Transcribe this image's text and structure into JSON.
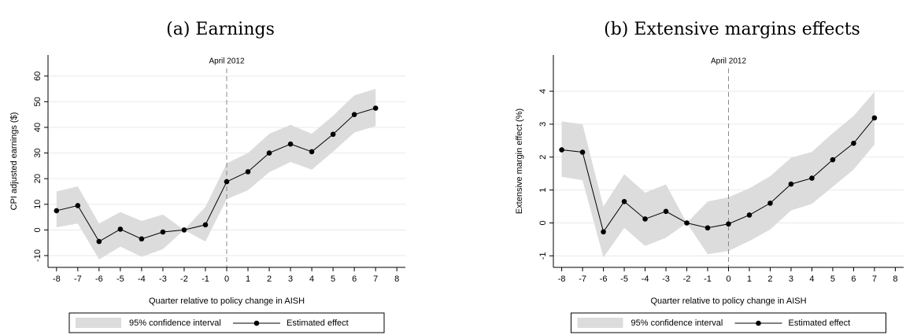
{
  "chart_data": [
    {
      "type": "line",
      "title": "(a) Earnings",
      "xlabel": "Quarter relative to policy change in AISH",
      "ylabel": "CPI adjusted earnings ($)",
      "annotation": {
        "text": "April 2012",
        "x": 0
      },
      "x": [
        -8,
        -7,
        -6,
        -5,
        -4,
        -3,
        -2,
        -1,
        0,
        1,
        2,
        3,
        4,
        5,
        6,
        7
      ],
      "series": [
        {
          "name": "95% confidence interval",
          "color": "#dcdcdc",
          "lower": [
            1,
            2.5,
            -11.5,
            -6.5,
            -10.5,
            -7.5,
            0,
            -4.5,
            12,
            15.5,
            22.5,
            26.5,
            23.5,
            30.5,
            38,
            40.5
          ],
          "upper": [
            15,
            17,
            2.5,
            7,
            3.5,
            6,
            0,
            9,
            26,
            30,
            37.5,
            41,
            37.5,
            44.5,
            52.5,
            55
          ]
        },
        {
          "name": "Estimated effect",
          "color": "#000000",
          "values": [
            7.5,
            9.5,
            -4.5,
            0.3,
            -3.5,
            -0.8,
            0,
            2,
            18.8,
            22.7,
            30,
            33.5,
            30.5,
            37.3,
            45,
            47.5
          ]
        }
      ],
      "xlim": [
        -8.4,
        8.4
      ],
      "xticks": [
        -8,
        -7,
        -6,
        -5,
        -4,
        -3,
        -2,
        -1,
        0,
        1,
        2,
        3,
        4,
        5,
        6,
        7,
        8
      ],
      "ylim": [
        -14.6,
        68.2
      ],
      "yticks": [
        -10,
        0,
        10,
        20,
        30,
        40,
        50,
        60
      ],
      "grid": true
    },
    {
      "type": "line",
      "title": "(b) Extensive margins effects",
      "xlabel": "Quarter relative to policy change in AISH",
      "ylabel": "Extensive margin effect (%)",
      "annotation": {
        "text": "April 2012",
        "x": 0
      },
      "x": [
        -8,
        -7,
        -6,
        -5,
        -4,
        -3,
        -2,
        -1,
        0,
        1,
        2,
        3,
        4,
        5,
        6,
        7
      ],
      "series": [
        {
          "name": "95% confidence interval",
          "color": "#dcdcdc",
          "lower": [
            1.4,
            1.3,
            -1.05,
            -0.15,
            -0.7,
            -0.45,
            0,
            -0.95,
            -0.85,
            -0.55,
            -0.2,
            0.38,
            0.58,
            1.1,
            1.62,
            2.38
          ],
          "upper": [
            3.08,
            3.0,
            0.5,
            1.48,
            0.92,
            1.17,
            0,
            0.65,
            0.78,
            1.05,
            1.42,
            1.98,
            2.16,
            2.73,
            3.25,
            3.98
          ]
        },
        {
          "name": "Estimated effect",
          "color": "#000000",
          "values": [
            2.22,
            2.15,
            -0.27,
            0.65,
            0.12,
            0.35,
            0,
            -0.15,
            -0.03,
            0.24,
            0.6,
            1.18,
            1.36,
            1.92,
            2.42,
            3.19
          ]
        }
      ],
      "xlim": [
        -8.4,
        8.4
      ],
      "xticks": [
        -8,
        -7,
        -6,
        -5,
        -4,
        -3,
        -2,
        -1,
        0,
        1,
        2,
        3,
        4,
        5,
        6,
        7,
        8
      ],
      "ylim": [
        -1.35,
        5.1
      ],
      "yticks": [
        -1,
        0,
        1,
        2,
        3,
        4
      ],
      "grid": true
    }
  ]
}
